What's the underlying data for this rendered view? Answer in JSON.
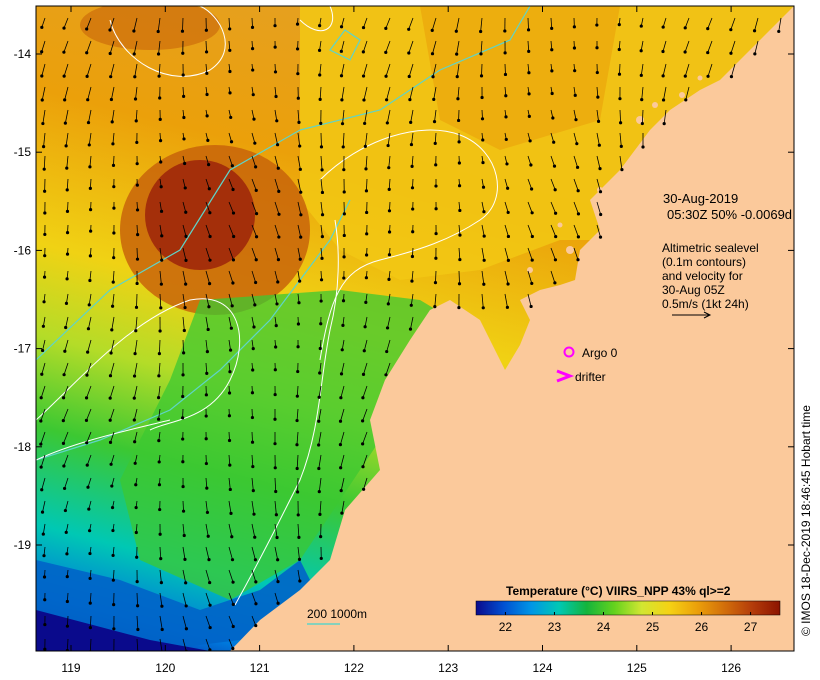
{
  "colors": {
    "land": "#fbc99b",
    "contour": "#ffffff",
    "bathymetry": "#5fd4c8",
    "argo": "#ff00ff",
    "drifter": "#ff00ff",
    "arrow": "#000000"
  },
  "axes": {
    "x_ticks": [
      "119",
      "120",
      "121",
      "122",
      "123",
      "124",
      "125",
      "126"
    ],
    "y_ticks": [
      "-14",
      "-15",
      "-16",
      "-17",
      "-18",
      "-19"
    ]
  },
  "info": {
    "date": "30-Aug-2019",
    "time_line": "05:30Z  50% -0.0069d",
    "sealevel_lines": [
      "Altimetric sealevel",
      "(0.1m contours)",
      "and velocity for",
      "30-Aug 05Z",
      "0.5m/s (1kt 24h)"
    ]
  },
  "legend": {
    "argo_label": "Argo 0",
    "drifter_label": "drifter",
    "isobath_label": "200  1000m"
  },
  "colorbar": {
    "title": "Temperature (°C) VIIRS_NPP 43% ql>=2",
    "ticks": [
      "22",
      "23",
      "24",
      "25",
      "26",
      "27"
    ],
    "range": [
      21.4,
      27.6
    ],
    "stops": [
      "#0a0a8c",
      "#0050d2",
      "#0096e6",
      "#00c8b4",
      "#14b43c",
      "#64d21e",
      "#d2e632",
      "#f5d214",
      "#eba00a",
      "#d26e0a",
      "#b43c0a",
      "#8c1400"
    ]
  },
  "credit": "© IMOS 18-Dec-2019 18:46:45 Hobart time"
}
